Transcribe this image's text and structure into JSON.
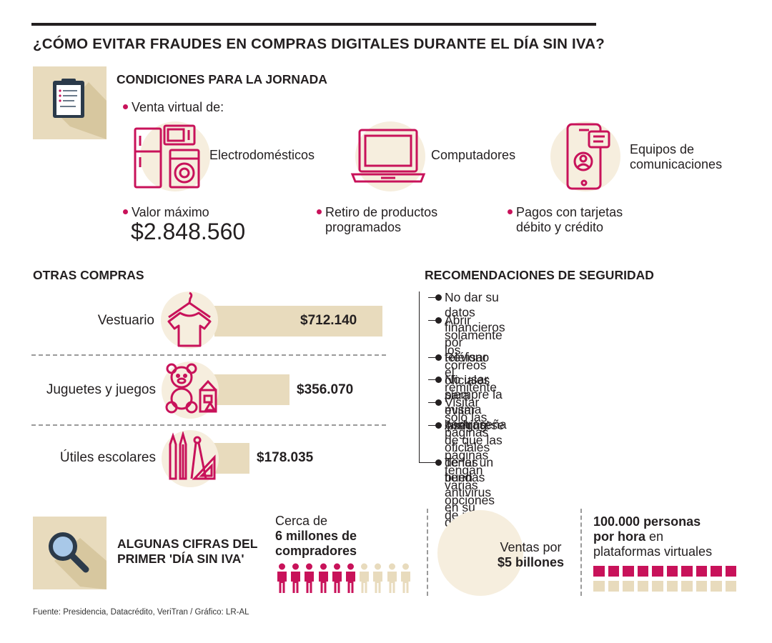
{
  "title": "¿CÓMO EVITAR FRAUDES EN COMPRAS DIGITALES DURANTE EL DÍA SIN IVA?",
  "colors": {
    "accent": "#c8125a",
    "beige": "#e8dbbd",
    "light_circle": "#f6eede",
    "text": "#231f20"
  },
  "condiciones": {
    "heading": "CONDICIONES PARA LA JORNADA",
    "icon": "clipboard-icon",
    "venta_label": "Venta virtual de:",
    "categories": [
      {
        "label": "Electrodomésticos",
        "icon": "appliances-icon"
      },
      {
        "label": "Computadores",
        "icon": "laptop-icon"
      },
      {
        "label_line1": "Equipos de",
        "label_line2": "comunicaciones",
        "icon": "smartphone-icon"
      }
    ],
    "valor_label": "Valor máximo",
    "valor_amount": "$2.848.560",
    "retiro_line1": "Retiro de productos",
    "retiro_line2": "programados",
    "pagos_line1": "Pagos con tarjetas",
    "pagos_line2": "débito y crédito"
  },
  "otras_compras": {
    "heading": "OTRAS COMPRAS",
    "items": [
      {
        "label": "Vestuario",
        "value": "$712.140",
        "amount": 712140,
        "icon": "tshirt-icon"
      },
      {
        "label": "Juguetes y juegos",
        "value": "$356.070",
        "amount": 356070,
        "icon": "teddy-bear-icon"
      },
      {
        "label": "Útiles escolares",
        "value": "$178.035",
        "amount": 178035,
        "icon": "school-supplies-icon"
      }
    ]
  },
  "recomendaciones": {
    "heading": "RECOMENDACIONES DE SEGURIDAD",
    "items": [
      {
        "line1": "No dar su datos financieros por teléfono"
      },
      {
        "line1": "Abrir solamente los correos oficiales",
        "line2": "para evitar 'pishing'"
      },
      {
        "line1": "Revisar el remitente"
      },
      {
        "line1": "No usar siempre la misma contraseña"
      },
      {
        "line1": "Visitar solo las páginas oficiales de las tiendas"
      },
      {
        "line1": "Asegúrese de que las páginas tengan",
        "line2": "varias opciones de pago"
      },
      {
        "line1": "Tener un buen antivirus en su dispositivo"
      }
    ]
  },
  "cifras": {
    "heading_line1": "ALGUNAS CIFRAS DEL",
    "heading_line2": "PRIMER 'DÍA SIN IVA'",
    "icon": "magnifier-icon",
    "compradores": {
      "line1": "Cerca de",
      "line2": "6 millones de",
      "line3": "compradores",
      "filled": 6,
      "total": 10
    },
    "ventas": {
      "line1": "Ventas por",
      "line2": "$5 billones"
    },
    "personas": {
      "line1": "100.000 personas",
      "line2_bold": "por hora",
      "line2_rest": " en",
      "line3": "plataformas virtuales",
      "filled": 10,
      "total": 20
    }
  },
  "fuente": "Fuente: Presidencia, Datacrédito, VeriTran / Gráfico: LR-AL"
}
